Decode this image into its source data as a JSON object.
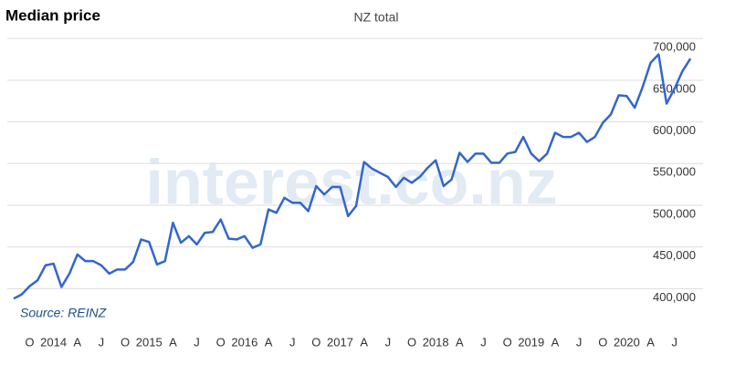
{
  "chart_data": {
    "type": "line",
    "title": "Median price",
    "subtitle": "NZ total",
    "source": "Source: REINZ",
    "watermark": "interest.co.nz",
    "categories": [
      null,
      null,
      "O",
      null,
      null,
      "2014",
      null,
      null,
      "A",
      null,
      null,
      "J",
      null,
      null,
      "O",
      null,
      null,
      "2015",
      null,
      null,
      "A",
      null,
      null,
      "J",
      null,
      null,
      "O",
      null,
      null,
      "2016",
      null,
      null,
      "A",
      null,
      null,
      "J",
      null,
      null,
      "O",
      null,
      null,
      "2017",
      null,
      null,
      "A",
      null,
      null,
      "J",
      null,
      null,
      "O",
      null,
      null,
      "2018",
      null,
      null,
      "A",
      null,
      null,
      "J",
      null,
      null,
      "O",
      null,
      null,
      "2019",
      null,
      null,
      "A",
      null,
      null,
      "J",
      null,
      null,
      "O",
      null,
      null,
      "2020",
      null,
      null,
      "A",
      null,
      null,
      "J",
      null,
      null
    ],
    "series": [
      {
        "name": "NZ total",
        "color": "#3366cc",
        "values": [
          388000,
          393000,
          403000,
          410000,
          428000,
          430000,
          402000,
          418000,
          441000,
          433000,
          433000,
          428000,
          418000,
          423000,
          423000,
          432000,
          459000,
          456000,
          429000,
          433000,
          479000,
          455000,
          463000,
          453000,
          467000,
          468000,
          483000,
          460000,
          459000,
          463000,
          449000,
          453000,
          495000,
          491000,
          509000,
          503000,
          503000,
          493000,
          523000,
          513000,
          522000,
          522000,
          487000,
          499000,
          552000,
          544000,
          539000,
          534000,
          522000,
          533000,
          527000,
          534000,
          545000,
          554000,
          523000,
          531000,
          563000,
          552000,
          562000,
          562000,
          551000,
          551000,
          562000,
          564000,
          582000,
          562000,
          553000,
          562000,
          587000,
          582000,
          582000,
          587000,
          576000,
          582000,
          599000,
          609000,
          632000,
          631000,
          617000,
          642000,
          671000,
          681000,
          622000,
          640000,
          661000,
          676000
        ]
      }
    ],
    "ylim": [
      350000,
      720000
    ],
    "yticks": [
      {
        "value": 400000,
        "label": "400,000"
      },
      {
        "value": 450000,
        "label": "450,000"
      },
      {
        "value": 500000,
        "label": "500,000"
      },
      {
        "value": 550000,
        "label": "550,000"
      },
      {
        "value": 600000,
        "label": "600,000"
      },
      {
        "value": 650000,
        "label": "650,000"
      },
      {
        "value": 700000,
        "label": "700,000"
      }
    ],
    "grid": true
  }
}
